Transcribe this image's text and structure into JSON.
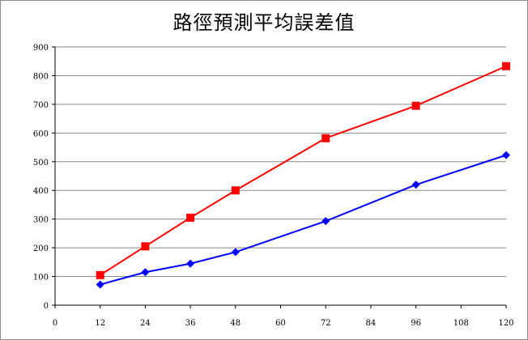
{
  "chart_data": {
    "type": "line",
    "title": "路徑預測平均誤差值",
    "xlabel": "",
    "ylabel": "",
    "xlim": [
      0,
      120
    ],
    "ylim": [
      0,
      900
    ],
    "x_ticks": [
      0,
      12,
      24,
      36,
      48,
      60,
      72,
      84,
      96,
      108,
      120
    ],
    "y_ticks": [
      0,
      100,
      200,
      300,
      400,
      500,
      600,
      700,
      800,
      900
    ],
    "grid": "horizontal",
    "legend": "none",
    "series": [
      {
        "color": "#ff0000",
        "marker": "square",
        "x": [
          12,
          24,
          36,
          48,
          72,
          96,
          120
        ],
        "y": [
          105,
          205,
          305,
          400,
          582,
          695,
          833
        ]
      },
      {
        "color": "#0000ff",
        "marker": "diamond",
        "x": [
          12,
          24,
          36,
          48,
          72,
          96,
          120
        ],
        "y": [
          72,
          115,
          145,
          185,
          293,
          420,
          523
        ]
      }
    ]
  }
}
